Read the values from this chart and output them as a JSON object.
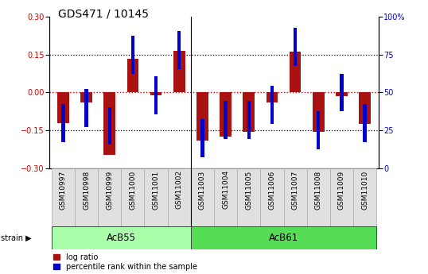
{
  "title": "GDS471 / 10145",
  "samples": [
    "GSM10997",
    "GSM10998",
    "GSM10999",
    "GSM11000",
    "GSM11001",
    "GSM11002",
    "GSM11003",
    "GSM11004",
    "GSM11005",
    "GSM11006",
    "GSM11007",
    "GSM11008",
    "GSM11009",
    "GSM11010"
  ],
  "log_ratio": [
    -0.12,
    -0.04,
    -0.245,
    0.133,
    -0.01,
    0.165,
    -0.19,
    -0.175,
    -0.155,
    -0.04,
    0.162,
    -0.155,
    -0.015,
    -0.125
  ],
  "percentile": [
    30,
    40,
    28,
    75,
    48,
    78,
    20,
    32,
    32,
    42,
    80,
    25,
    50,
    30
  ],
  "groups": [
    {
      "label": "AcB55",
      "start": 0,
      "end": 5,
      "color": "#90EE90"
    },
    {
      "label": "AcB61",
      "start": 6,
      "end": 13,
      "color": "#4CBB4C"
    }
  ],
  "ylim": [
    -0.3,
    0.3
  ],
  "y2lim": [
    0,
    100
  ],
  "bar_color": "#AA1111",
  "pct_color": "#0000CC",
  "bar_width": 0.5,
  "pct_size": 0.15,
  "dotted_color": "#000000",
  "zero_line_color": "#CC0000",
  "background_color": "#ffffff",
  "yticks_left": [
    -0.3,
    -0.15,
    0,
    0.15,
    0.3
  ],
  "yticks_right": [
    0,
    25,
    50,
    75,
    100
  ],
  "ytick_labels_right": [
    "0",
    "25",
    "50",
    "75",
    "100%"
  ],
  "title_fontsize": 10,
  "tick_fontsize": 7,
  "label_fontsize": 6.5,
  "ylabel_left_color": "#CC0000",
  "ylabel_right_color": "#0000CC",
  "group_fontsize": 8.5,
  "legend_fontsize": 7,
  "acb55_color": "#AAFFAA",
  "acb61_color": "#55DD55"
}
